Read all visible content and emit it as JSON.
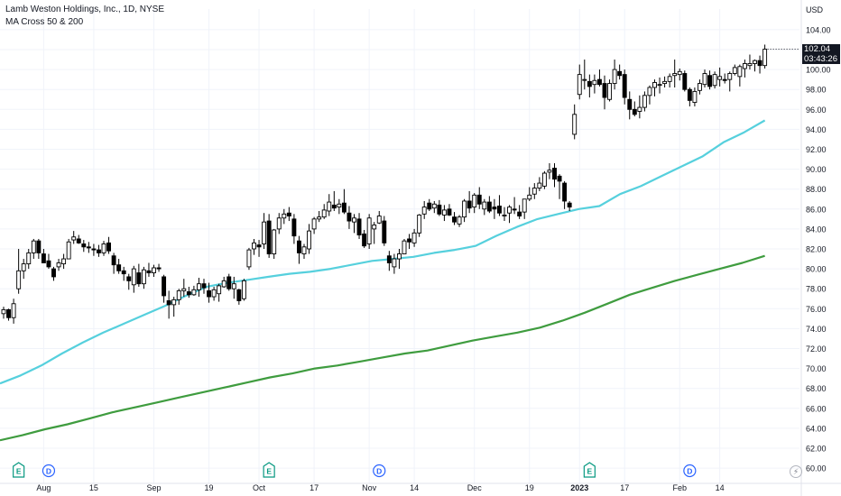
{
  "header": {
    "title": "Lamb Weston Holdings, Inc., 1D, NYSE",
    "indicator": "MA Cross 50 & 200"
  },
  "price_axis": {
    "currency": "USD",
    "last_price": "102.04",
    "countdown": "03:43:26"
  },
  "colors": {
    "background": "#ffffff",
    "grid": "#f0f3fa",
    "up_candle_body": "#ffffff",
    "down_candle_body": "#000000",
    "candle_outline": "#000000",
    "ma50": "#56d0dd",
    "ma200": "#3f9c3f",
    "axis_text": "#131722"
  },
  "chart_data": {
    "type": "line",
    "title": "Lamb Weston Holdings, Inc., 1D, NYSE",
    "subtitle": "MA Cross 50 & 200",
    "ylabel": "USD",
    "ylim": [
      59.6,
      105.6
    ],
    "y_ticks": [
      "60.00",
      "62.00",
      "64.00",
      "66.00",
      "68.00",
      "70.00",
      "72.00",
      "74.00",
      "76.00",
      "78.00",
      "80.00",
      "82.00",
      "84.00",
      "86.00",
      "88.00",
      "90.00",
      "92.00",
      "94.00",
      "96.00",
      "98.00",
      "100.00",
      "102.00",
      "104.00"
    ],
    "x_tick_labels": [
      {
        "label": "Aug",
        "bar": 8
      },
      {
        "label": "15",
        "bar": 18
      },
      {
        "label": "Sep",
        "bar": 30
      },
      {
        "label": "19",
        "bar": 41
      },
      {
        "label": "Oct",
        "bar": 51
      },
      {
        "label": "17",
        "bar": 62
      },
      {
        "label": "Nov",
        "bar": 73
      },
      {
        "label": "14",
        "bar": 82
      },
      {
        "label": "Dec",
        "bar": 94
      },
      {
        "label": "19",
        "bar": 105
      },
      {
        "label": "2023",
        "bar": 115
      },
      {
        "label": "17",
        "bar": 124
      },
      {
        "label": "Feb",
        "bar": 135
      },
      {
        "label": "14",
        "bar": 143
      }
    ],
    "events": [
      {
        "type": "E",
        "bar": 3,
        "color": "#089981"
      },
      {
        "type": "D",
        "bar": 9,
        "color": "#2962ff"
      },
      {
        "type": "E",
        "bar": 53,
        "color": "#089981"
      },
      {
        "type": "D",
        "bar": 75,
        "color": "#2962ff"
      },
      {
        "type": "E",
        "bar": 117,
        "color": "#089981"
      },
      {
        "type": "D",
        "bar": 137,
        "color": "#2962ff"
      }
    ],
    "series": [
      {
        "name": "MA 50",
        "type": "line",
        "values": [
          68.5,
          69.3,
          70.3,
          71.5,
          72.6,
          73.6,
          74.5,
          75.4,
          76.3,
          77.3,
          78.2,
          78.6,
          78.9,
          79.2,
          79.5,
          79.7,
          80.0,
          80.4,
          80.8,
          81.0,
          81.2,
          81.6,
          81.9,
          82.3,
          83.3,
          84.2,
          85.0,
          85.5,
          86.0,
          86.3,
          87.5,
          88.3,
          89.3,
          90.3,
          91.3,
          92.7,
          93.7,
          94.9
        ]
      },
      {
        "name": "MA 200",
        "type": "line",
        "values": [
          62.8,
          63.3,
          63.9,
          64.4,
          65.0,
          65.6,
          66.1,
          66.6,
          67.1,
          67.6,
          68.1,
          68.6,
          69.1,
          69.5,
          70.0,
          70.3,
          70.7,
          71.1,
          71.5,
          71.8,
          72.3,
          72.8,
          73.2,
          73.6,
          74.1,
          74.8,
          75.6,
          76.5,
          77.4,
          78.1,
          78.8,
          79.4,
          80.0,
          80.6,
          81.3
        ]
      },
      {
        "name": "Price",
        "type": "candlestick",
        "values": [
          [
            75.5,
            76.2,
            75.0,
            75.9
          ],
          [
            75.9,
            76.0,
            74.8,
            75.1
          ],
          [
            75.1,
            77.0,
            74.5,
            76.5
          ],
          [
            78.0,
            82.0,
            77.5,
            79.8
          ],
          [
            79.8,
            81.0,
            79.0,
            80.5
          ],
          [
            80.5,
            82.0,
            80.0,
            81.6
          ],
          [
            81.6,
            83.0,
            81.0,
            82.8
          ],
          [
            82.8,
            83.0,
            81.0,
            81.6
          ],
          [
            81.5,
            82.0,
            80.6,
            80.6
          ],
          [
            80.8,
            81.5,
            80.0,
            80.2
          ],
          [
            80.0,
            80.2,
            78.8,
            79.2
          ],
          [
            80.2,
            81.0,
            79.8,
            80.6
          ],
          [
            80.5,
            81.5,
            80.0,
            81.0
          ],
          [
            81.0,
            83.0,
            81.0,
            82.7
          ],
          [
            82.9,
            83.8,
            82.5,
            83.2
          ],
          [
            83.0,
            83.4,
            82.5,
            82.6
          ],
          [
            82.5,
            82.9,
            81.7,
            82.2
          ],
          [
            82.2,
            82.7,
            81.6,
            82.1
          ],
          [
            82.0,
            82.5,
            81.3,
            81.9
          ],
          [
            81.9,
            82.4,
            81.2,
            81.6
          ],
          [
            81.6,
            82.8,
            81.3,
            82.5
          ],
          [
            82.6,
            83.2,
            81.5,
            81.8
          ],
          [
            81.3,
            81.6,
            79.5,
            80.4
          ],
          [
            80.4,
            81.0,
            79.5,
            79.8
          ],
          [
            79.8,
            80.2,
            78.8,
            79.5
          ],
          [
            79.2,
            79.5,
            77.9,
            78.8
          ],
          [
            78.4,
            80.3,
            77.6,
            80.0
          ],
          [
            79.6,
            80.5,
            78.2,
            78.5
          ],
          [
            78.5,
            80.2,
            78.0,
            79.9
          ],
          [
            79.8,
            80.6,
            79.2,
            79.6
          ],
          [
            79.6,
            80.4,
            79.2,
            80.1
          ],
          [
            80.1,
            80.5,
            79.7,
            80.0
          ],
          [
            79.2,
            79.4,
            76.6,
            77.3
          ],
          [
            76.8,
            77.8,
            75.0,
            76.4
          ],
          [
            76.4,
            77.2,
            75.2,
            76.9
          ],
          [
            76.9,
            78.0,
            76.4,
            77.8
          ],
          [
            77.8,
            79.0,
            77.2,
            78.0
          ],
          [
            77.7,
            78.2,
            77.1,
            77.4
          ],
          [
            77.4,
            78.3,
            77.3,
            77.9
          ],
          [
            77.9,
            79.1,
            77.2,
            78.5
          ],
          [
            78.5,
            79.0,
            77.5,
            78.1
          ],
          [
            77.8,
            78.6,
            76.6,
            77.2
          ],
          [
            77.2,
            78.2,
            76.8,
            77.9
          ],
          [
            77.5,
            78.5,
            76.7,
            78.3
          ],
          [
            78.2,
            79.2,
            78.1,
            78.8
          ],
          [
            79.2,
            79.5,
            77.8,
            78.0
          ],
          [
            78.0,
            79.2,
            77.0,
            78.5
          ],
          [
            77.9,
            78.0,
            76.4,
            76.8
          ],
          [
            77.0,
            79.0,
            76.8,
            78.8
          ],
          [
            80.2,
            82.1,
            79.9,
            81.9
          ],
          [
            82.0,
            83.0,
            81.4,
            82.6
          ],
          [
            82.4,
            82.9,
            81.2,
            82.2
          ],
          [
            82.5,
            85.6,
            82.0,
            84.7
          ],
          [
            84.8,
            85.5,
            81.1,
            81.5
          ],
          [
            81.5,
            84.0,
            81.0,
            83.9
          ],
          [
            84.0,
            85.6,
            83.5,
            85.1
          ],
          [
            85.1,
            86.0,
            84.5,
            85.5
          ],
          [
            85.6,
            86.2,
            84.8,
            85.3
          ],
          [
            85.0,
            85.5,
            82.5,
            83.3
          ],
          [
            82.8,
            83.3,
            80.5,
            81.6
          ],
          [
            81.5,
            82.5,
            81.0,
            82.2
          ],
          [
            82.0,
            84.5,
            81.5,
            83.8
          ],
          [
            84.0,
            85.2,
            83.5,
            85.0
          ],
          [
            85.0,
            85.8,
            84.7,
            85.2
          ],
          [
            85.2,
            86.5,
            85.0,
            85.9
          ],
          [
            85.8,
            87.5,
            85.3,
            86.7
          ],
          [
            86.4,
            87.8,
            85.8,
            86.1
          ],
          [
            86.2,
            87.0,
            85.5,
            86.5
          ],
          [
            86.6,
            88.0,
            85.5,
            85.7
          ],
          [
            85.6,
            86.3,
            84.0,
            84.8
          ],
          [
            84.7,
            85.5,
            83.6,
            85.1
          ],
          [
            85.0,
            85.6,
            83.0,
            83.4
          ],
          [
            83.5,
            83.9,
            82.1,
            82.3
          ],
          [
            82.5,
            85.5,
            82.0,
            85.1
          ],
          [
            84.0,
            84.7,
            82.5,
            84.4
          ],
          [
            84.6,
            85.8,
            84.5,
            85.3
          ],
          [
            84.8,
            85.3,
            82.3,
            82.6
          ],
          [
            81.3,
            81.8,
            79.8,
            80.6
          ],
          [
            80.2,
            81.5,
            79.5,
            81.0
          ],
          [
            81.0,
            82.0,
            80.0,
            81.5
          ],
          [
            81.5,
            83.0,
            81.5,
            82.8
          ],
          [
            83.0,
            83.5,
            82.0,
            82.7
          ],
          [
            82.6,
            84.0,
            82.2,
            83.6
          ],
          [
            83.6,
            85.5,
            83.2,
            85.4
          ],
          [
            85.5,
            86.8,
            85.0,
            86.2
          ],
          [
            86.6,
            87.0,
            85.8,
            86.0
          ],
          [
            86.1,
            86.8,
            85.6,
            86.5
          ],
          [
            86.4,
            86.9,
            85.3,
            85.5
          ],
          [
            85.4,
            86.4,
            84.8,
            85.9
          ],
          [
            86.0,
            86.5,
            85.3,
            85.4
          ],
          [
            85.2,
            85.7,
            84.4,
            84.7
          ],
          [
            84.5,
            85.4,
            84.2,
            85.2
          ],
          [
            85.2,
            87.0,
            84.7,
            86.8
          ],
          [
            86.8,
            87.8,
            85.6,
            86.1
          ],
          [
            86.2,
            87.6,
            85.6,
            87.4
          ],
          [
            87.4,
            88.2,
            86.0,
            86.5
          ],
          [
            86.0,
            87.0,
            85.4,
            86.7
          ],
          [
            86.7,
            87.3,
            85.6,
            85.8
          ],
          [
            86.2,
            87.0,
            85.0,
            86.0
          ],
          [
            86.3,
            87.4,
            85.3,
            85.6
          ],
          [
            85.3,
            86.2,
            84.8,
            85.4
          ],
          [
            85.6,
            86.4,
            84.6,
            86.2
          ],
          [
            86.0,
            87.2,
            85.5,
            85.9
          ],
          [
            85.7,
            86.4,
            85.0,
            85.3
          ],
          [
            85.7,
            87.0,
            85.0,
            87.0
          ],
          [
            87.0,
            88.2,
            86.8,
            87.4
          ],
          [
            87.5,
            88.6,
            87.0,
            88.1
          ],
          [
            88.1,
            89.2,
            87.8,
            88.6
          ],
          [
            88.3,
            89.8,
            88.0,
            89.6
          ],
          [
            89.7,
            90.6,
            89.0,
            89.9
          ],
          [
            90.1,
            90.6,
            88.2,
            89.0
          ],
          [
            89.3,
            89.5,
            87.0,
            88.8
          ],
          [
            88.6,
            88.8,
            86.0,
            86.8
          ],
          [
            86.6,
            86.8,
            85.8,
            86.2
          ],
          [
            93.5,
            96.5,
            93.0,
            95.5
          ],
          [
            97.5,
            100.5,
            97.0,
            99.5
          ],
          [
            99.0,
            101.0,
            98.0,
            99.0
          ],
          [
            98.8,
            99.5,
            97.2,
            98.3
          ],
          [
            98.5,
            99.5,
            97.6,
            98.9
          ],
          [
            99.0,
            100.0,
            98.3,
            98.5
          ],
          [
            98.6,
            99.4,
            96.0,
            97.2
          ],
          [
            97.0,
            99.0,
            96.8,
            98.6
          ],
          [
            98.6,
            101.0,
            98.0,
            100.0
          ],
          [
            99.8,
            100.5,
            99.0,
            99.4
          ],
          [
            99.5,
            100.0,
            96.5,
            97.2
          ],
          [
            97.0,
            97.8,
            95.0,
            96.0
          ],
          [
            96.0,
            96.8,
            95.3,
            95.5
          ],
          [
            95.8,
            97.4,
            95.1,
            96.2
          ],
          [
            96.2,
            97.8,
            95.8,
            97.4
          ],
          [
            97.4,
            98.4,
            96.5,
            98.2
          ],
          [
            98.2,
            99.0,
            97.3,
            98.7
          ],
          [
            98.5,
            99.2,
            97.6,
            98.5
          ],
          [
            98.6,
            99.3,
            98.2,
            98.8
          ],
          [
            98.8,
            99.6,
            98.2,
            99.3
          ],
          [
            99.4,
            101.0,
            98.2,
            99.6
          ],
          [
            99.5,
            100.1,
            98.9,
            99.8
          ],
          [
            99.6,
            99.9,
            97.8,
            98.0
          ],
          [
            98.0,
            98.2,
            96.3,
            96.9
          ],
          [
            96.7,
            98.2,
            96.3,
            97.8
          ],
          [
            97.9,
            99.0,
            97.5,
            98.6
          ],
          [
            98.5,
            100.0,
            98.2,
            99.6
          ],
          [
            99.4,
            99.9,
            98.0,
            98.3
          ],
          [
            98.4,
            99.8,
            98.1,
            99.5
          ],
          [
            99.0,
            100.2,
            98.3,
            99.3
          ],
          [
            99.0,
            99.6,
            98.6,
            98.9
          ],
          [
            99.0,
            99.8,
            97.8,
            99.6
          ],
          [
            99.6,
            100.5,
            99.4,
            100.2
          ],
          [
            99.3,
            100.5,
            98.3,
            100.3
          ],
          [
            100.1,
            101.0,
            99.2,
            100.6
          ],
          [
            100.4,
            101.5,
            100.0,
            100.6
          ],
          [
            100.6,
            101.0,
            99.8,
            100.9
          ],
          [
            100.9,
            101.4,
            99.6,
            100.4
          ],
          [
            100.4,
            102.5,
            100.1,
            102.04
          ]
        ]
      }
    ]
  }
}
